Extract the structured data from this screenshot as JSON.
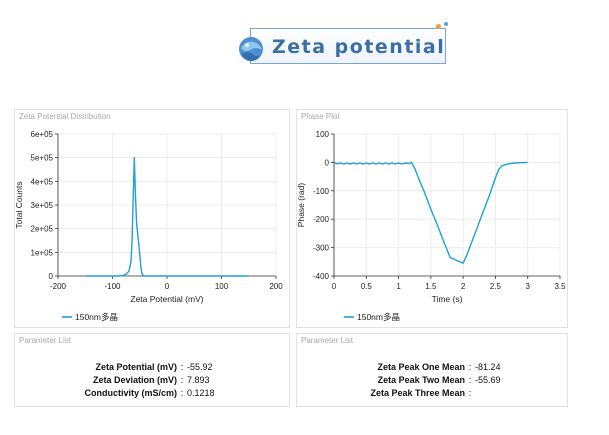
{
  "header": {
    "title": "Zeta potential"
  },
  "panels": {
    "zeta_distribution": {
      "title": "Zeta Potential Distribution"
    },
    "phase_plot": {
      "title": "Phase Plot"
    },
    "params_left": {
      "title": "Parameter List"
    },
    "params_right": {
      "title": "Parameter List"
    }
  },
  "chart_data": [
    {
      "type": "line",
      "xlabel": "Zeta Potential (mV)",
      "ylabel": "Total Counts",
      "xlim": [
        -200,
        200
      ],
      "ylim": [
        0,
        600000
      ],
      "xticks": [
        -200,
        -100,
        0,
        100,
        200
      ],
      "xtick_labels": [
        "-200",
        "-100",
        "0",
        "100",
        "200"
      ],
      "yticks": [
        0,
        100000,
        200000,
        300000,
        400000,
        500000,
        600000
      ],
      "ytick_labels": [
        "0",
        "1e+05",
        "2e+05",
        "3e+05",
        "4e+05",
        "5e+05",
        "6e+05"
      ],
      "grid": true,
      "legend": "bottom-left",
      "color": "#1ea0d8",
      "series": [
        {
          "name": "150nm多晶",
          "x": [
            -150,
            -90,
            -80,
            -75,
            -70,
            -66,
            -64,
            -62,
            -60,
            -58,
            -56,
            -54,
            -52,
            -50,
            -48,
            -46,
            -44,
            -40,
            -30,
            0,
            150
          ],
          "y": [
            0,
            0,
            2000,
            8000,
            20000,
            60000,
            150000,
            330000,
            500000,
            350000,
            230000,
            180000,
            140000,
            90000,
            40000,
            10000,
            2000,
            0,
            0,
            0,
            0
          ]
        }
      ]
    },
    {
      "type": "line",
      "xlabel": "Time (s)",
      "ylabel": "Phase (rad)",
      "xlim": [
        0,
        3.5
      ],
      "ylim": [
        -400,
        100
      ],
      "xticks": [
        0,
        0.5,
        1,
        1.5,
        2,
        2.5,
        3,
        3.5
      ],
      "xtick_labels": [
        "0",
        "0.5",
        "1",
        "1.5",
        "2",
        "2.5",
        "3",
        "3.5"
      ],
      "yticks": [
        -400,
        -300,
        -200,
        -100,
        0,
        100
      ],
      "ytick_labels": [
        "-400",
        "-300",
        "-200",
        "-100",
        "0",
        "100"
      ],
      "grid": true,
      "legend": "bottom-left",
      "color": "#1ea0d8",
      "series": [
        {
          "name": "150nm多晶",
          "x": [
            0,
            0.05,
            0.1,
            0.15,
            0.2,
            0.25,
            0.3,
            0.35,
            0.4,
            0.45,
            0.5,
            0.55,
            0.6,
            0.65,
            0.7,
            0.75,
            0.8,
            0.85,
            0.9,
            0.95,
            1.0,
            1.05,
            1.1,
            1.15,
            1.2,
            1.25,
            1.3,
            1.4,
            1.5,
            1.6,
            1.7,
            1.8,
            1.9,
            2.0,
            2.05,
            2.1,
            2.2,
            2.3,
            2.4,
            2.5,
            2.55,
            2.6,
            2.7,
            2.8,
            2.9,
            3.0
          ],
          "y": [
            0,
            -5,
            -2,
            -6,
            -2,
            -6,
            -2,
            -6,
            -2,
            -6,
            -2,
            -6,
            -2,
            -6,
            -2,
            -6,
            -2,
            -6,
            -2,
            -6,
            -2,
            -6,
            -2,
            -4,
            0,
            -20,
            -50,
            -105,
            -165,
            -220,
            -280,
            -335,
            -345,
            -355,
            -330,
            -300,
            -240,
            -180,
            -120,
            -55,
            -25,
            -12,
            -5,
            -2,
            -1,
            0
          ]
        }
      ]
    }
  ],
  "params_left": [
    {
      "label": "Zeta Potential (mV)",
      "value": "-55.92"
    },
    {
      "label": "Zeta Deviation (mV)",
      "value": "7.893"
    },
    {
      "label": "Conductivity (mS/cm)",
      "value": "0.1218"
    }
  ],
  "params_right": [
    {
      "label": "Zeta Peak One Mean",
      "value": "-81.24"
    },
    {
      "label": "Zeta Peak Two Mean",
      "value": "-55.69"
    },
    {
      "label": "Zeta Peak Three Mean",
      "value": ""
    }
  ]
}
